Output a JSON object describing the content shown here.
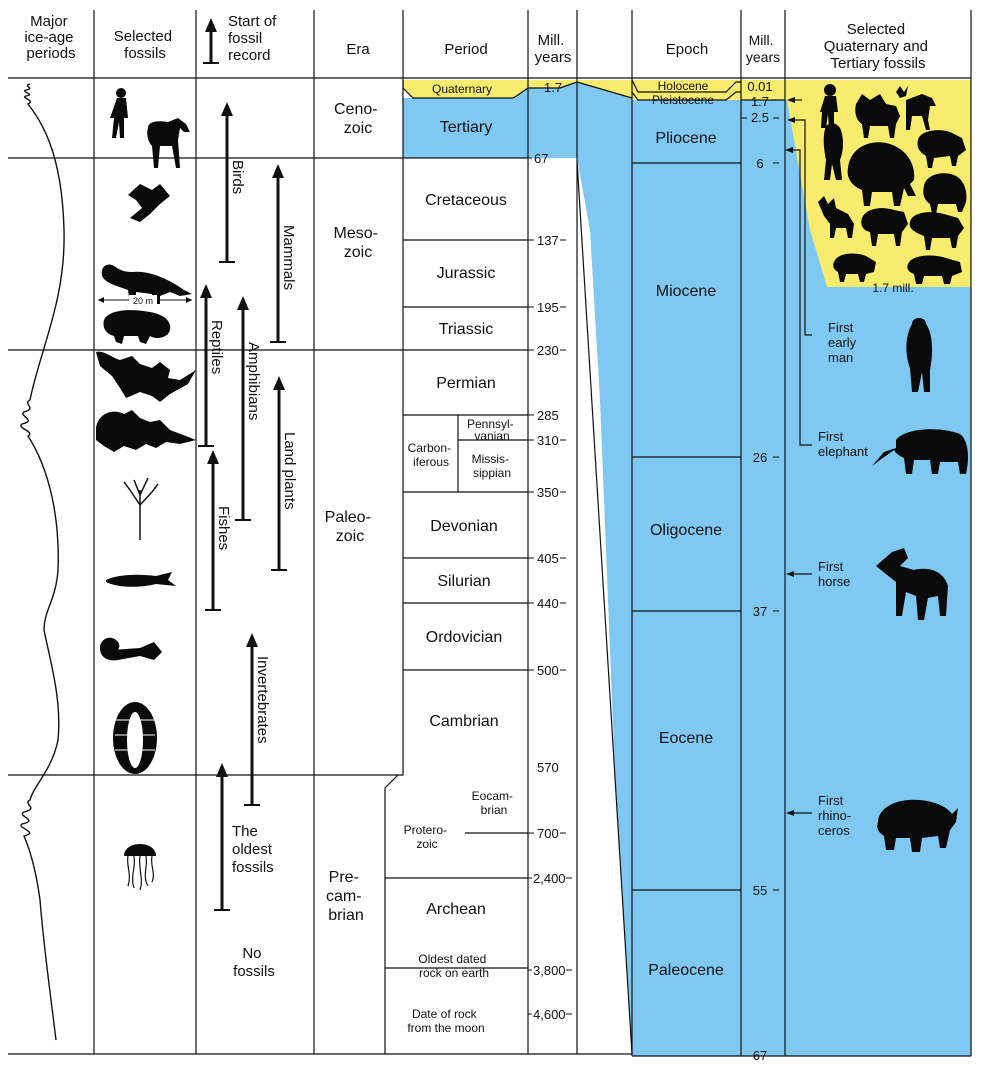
{
  "headers": {
    "ice_age": [
      "Major",
      "ice-age",
      "periods"
    ],
    "fossils": [
      "Selected",
      "fossils"
    ],
    "start": [
      "Start of",
      "fossil",
      "record"
    ],
    "era": [
      "Era"
    ],
    "period": [
      "Period"
    ],
    "mill_left": [
      "Mill.",
      "years"
    ],
    "epoch": [
      "Epoch"
    ],
    "mill_right": [
      "Mill.",
      "years"
    ],
    "selected_qt": [
      "Selected",
      "Quaternary and",
      "Tertiary fossils"
    ]
  },
  "eras": [
    {
      "lines": [
        "Ceno-",
        "zoic"
      ]
    },
    {
      "lines": [
        "Meso-",
        "zoic"
      ]
    },
    {
      "lines": [
        "Paleo-",
        "zoic"
      ]
    },
    {
      "lines": [
        "Pre-",
        "cam-",
        "brian"
      ]
    }
  ],
  "periods": {
    "quaternary": "Quaternary",
    "tertiary": "Tertiary",
    "cretaceous": "Cretaceous",
    "jurassic": "Jurassic",
    "triassic": "Triassic",
    "permian": "Permian",
    "carboniferous": [
      "Carbon-",
      "iferous"
    ],
    "pennsylvanian": [
      "Pennsyl-",
      "vanian"
    ],
    "mississippian": [
      "Missis-",
      "sippian"
    ],
    "devonian": "Devonian",
    "silurian": "Silurian",
    "ordovician": "Ordovician",
    "cambrian": "Cambrian",
    "eocambrian": [
      "Eocam-",
      "brian"
    ],
    "proterozoic": [
      "Protero-",
      "zoic"
    ],
    "archean": "Archean",
    "oldest_rock": [
      "Oldest dated",
      "rock on earth"
    ],
    "moon_rock": [
      "Date of rock",
      "from the moon"
    ]
  },
  "left_ticks": [
    "1.7",
    "67",
    "137",
    "195",
    "230",
    "285",
    "310",
    "350",
    "405",
    "440",
    "500",
    "570",
    "700",
    "2,400",
    "3,800",
    "4,600"
  ],
  "epochs": {
    "holocene": "Holocene",
    "pleistocene": "Pleistocene",
    "pliocene": "Pliocene",
    "miocene": "Miocene",
    "oligocene": "Oligocene",
    "eocene": "Eocene",
    "paleocene": "Paleocene"
  },
  "right_ticks": [
    "0.01",
    "1.7",
    "2.5",
    "6",
    "26",
    "37",
    "55",
    "67"
  ],
  "fossil_records": {
    "birds": "Birds",
    "mammals": "Mammals",
    "reptiles": "Reptiles",
    "amphibians": "Amphibians",
    "land_plants": "Land plants",
    "fishes": "Fishes",
    "invertebrates": "Invertebrates",
    "oldest_fossils": [
      "The",
      "oldest",
      "fossils"
    ],
    "no_fossils": [
      "No",
      "fossils"
    ]
  },
  "scale_label": "20 m",
  "yellow_box_label": "1.7 mill.",
  "firsts": {
    "early_man": [
      "First",
      "early",
      "man"
    ],
    "elephant": [
      "First",
      "elephant"
    ],
    "horse": [
      "First",
      "horse"
    ],
    "rhinoceros": [
      "First",
      "rhino-",
      "ceros"
    ]
  },
  "colors": {
    "sky_blue": "#7ec8f2",
    "yellow": "#f8ec6e",
    "line": "#111111",
    "silhouette": "#0a0a0a"
  }
}
